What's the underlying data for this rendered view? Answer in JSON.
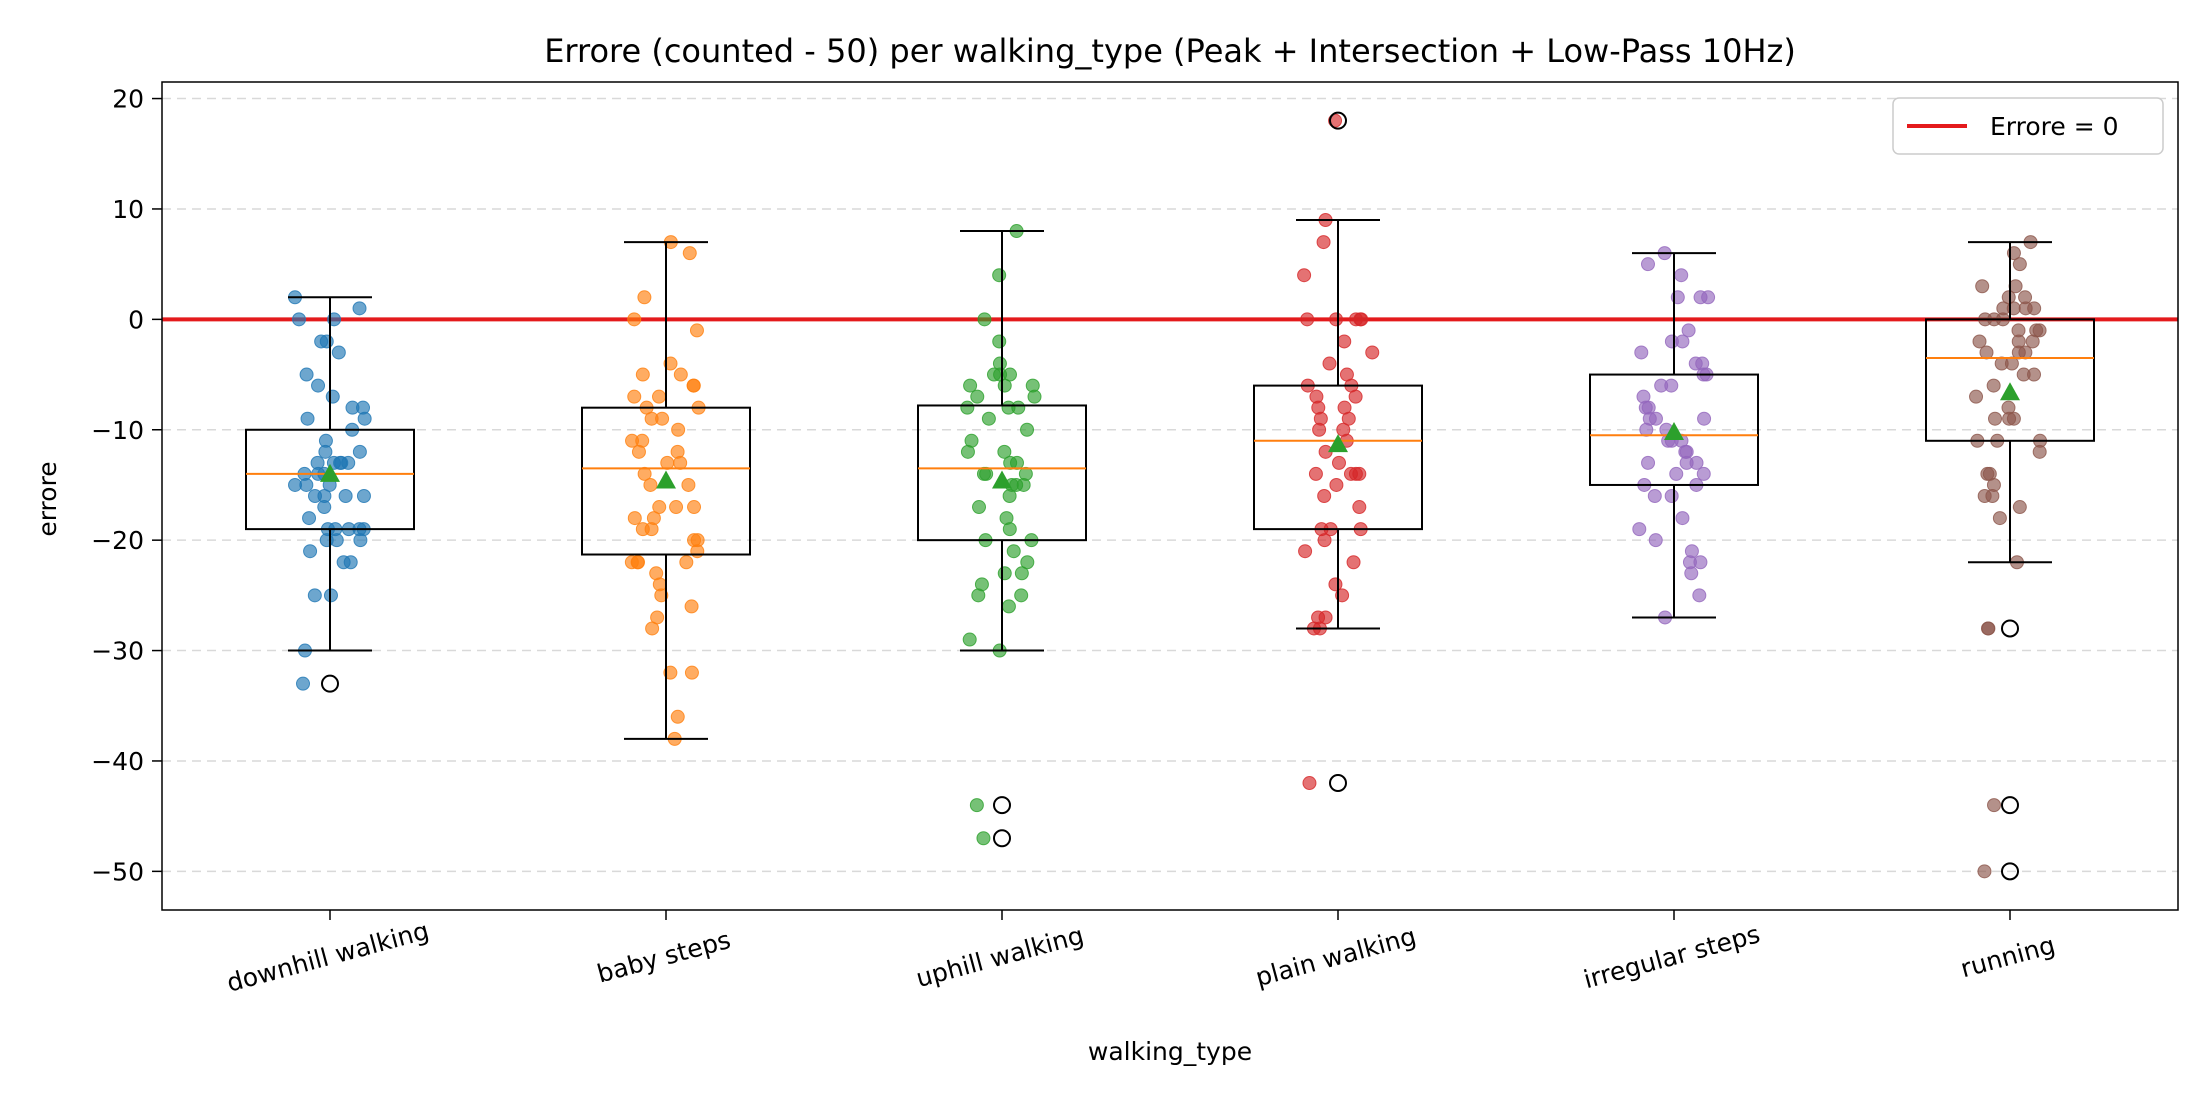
{
  "chart_data": {
    "type": "box",
    "title": "Errore (counted - 50) per walking_type (Peak + Intersection + Low-Pass 10Hz)",
    "xlabel": "walking_type",
    "ylabel": "errore",
    "ylim": [
      -53.5,
      21.5
    ],
    "yticks": [
      20,
      10,
      0,
      -10,
      -20,
      -30,
      -40,
      -50
    ],
    "ytick_labels": [
      "20",
      "10",
      "0",
      "−10",
      "−20",
      "−30",
      "−40",
      "−50"
    ],
    "grid": "horizontal dashed",
    "reference_line": {
      "value": 0,
      "color": "#e41a1c",
      "label": "Errore = 0"
    },
    "legend": {
      "position": "top-right",
      "label": "Errore = 0"
    },
    "categories": [
      "downhill walking",
      "baby steps",
      "uphill walking",
      "plain walking",
      "irregular steps",
      "running"
    ],
    "colors": [
      "#1f77b4",
      "#ff7f0e",
      "#2ca02c",
      "#d62728",
      "#9467bd",
      "#8c564b"
    ],
    "boxes": [
      {
        "name": "downhill walking",
        "whisker_low": -30,
        "q1": -19,
        "median": -14,
        "q3": -10,
        "whisker_high": 2,
        "mean": -14,
        "outliers": [
          -33
        ]
      },
      {
        "name": "baby steps",
        "whisker_low": -38,
        "q1": -21.3,
        "median": -13.5,
        "q3": -8,
        "whisker_high": 7,
        "mean": -14.6,
        "outliers": []
      },
      {
        "name": "uphill walking",
        "whisker_low": -30,
        "q1": -20,
        "median": -13.5,
        "q3": -7.8,
        "whisker_high": 8,
        "mean": -14.6,
        "outliers": [
          -44,
          -47
        ]
      },
      {
        "name": "plain walking",
        "whisker_low": -28,
        "q1": -19,
        "median": -11,
        "q3": -6,
        "whisker_high": 9,
        "mean": -11.3,
        "outliers": [
          -42,
          18
        ]
      },
      {
        "name": "irregular steps",
        "whisker_low": -27,
        "q1": -15,
        "median": -10.5,
        "q3": -5,
        "whisker_high": 6,
        "mean": -10.2,
        "outliers": []
      },
      {
        "name": "running",
        "whisker_low": -22,
        "q1": -11,
        "median": -3.5,
        "q3": 0,
        "whisker_high": 7,
        "mean": -6.6,
        "outliers": [
          -28,
          -44,
          -50
        ]
      }
    ],
    "points": [
      [
        2,
        1,
        0,
        0,
        -2,
        -2,
        -3,
        -5,
        -6,
        -7,
        -8,
        -8,
        -9,
        -9,
        -10,
        -11,
        -12,
        -12,
        -13,
        -13,
        -13,
        -13,
        -13,
        -14,
        -14,
        -14,
        -15,
        -15,
        -15,
        -16,
        -16,
        -16,
        -16,
        -17,
        -18,
        -19,
        -19,
        -19,
        -19,
        -19,
        -20,
        -20,
        -20,
        -21,
        -22,
        -22,
        -25,
        -25,
        -30,
        -33
      ],
      [
        7,
        6,
        2,
        0,
        -1,
        -4,
        -5,
        -5,
        -6,
        -6,
        -7,
        -7,
        -8,
        -8,
        -9,
        -9,
        -10,
        -11,
        -11,
        -12,
        -12,
        -13,
        -13,
        -14,
        -15,
        -15,
        -17,
        -17,
        -17,
        -18,
        -18,
        -19,
        -19,
        -20,
        -20,
        -21,
        -22,
        -22,
        -22,
        -22,
        -23,
        -24,
        -25,
        -26,
        -27,
        -28,
        -32,
        -32,
        -36,
        -38
      ],
      [
        8,
        4,
        0,
        -2,
        -4,
        -5,
        -5,
        -5,
        -6,
        -6,
        -6,
        -7,
        -7,
        -8,
        -8,
        -8,
        -9,
        -10,
        -11,
        -12,
        -12,
        -13,
        -13,
        -14,
        -14,
        -14,
        -15,
        -15,
        -15,
        -16,
        -17,
        -18,
        -19,
        -20,
        -20,
        -21,
        -22,
        -23,
        -23,
        -24,
        -25,
        -25,
        -26,
        -29,
        -30,
        -44,
        -47
      ],
      [
        18,
        9,
        7,
        4,
        0,
        0,
        0,
        0,
        0,
        -2,
        -3,
        -4,
        -5,
        -6,
        -6,
        -7,
        -7,
        -8,
        -8,
        -9,
        -9,
        -10,
        -10,
        -11,
        -12,
        -13,
        -14,
        -14,
        -14,
        -14,
        -15,
        -16,
        -17,
        -19,
        -19,
        -19,
        -20,
        -21,
        -22,
        -24,
        -25,
        -27,
        -27,
        -28,
        -28,
        -42
      ],
      [
        6,
        5,
        4,
        2,
        2,
        2,
        -1,
        -2,
        -2,
        -3,
        -4,
        -4,
        -5,
        -5,
        -6,
        -6,
        -7,
        -8,
        -8,
        -9,
        -9,
        -9,
        -10,
        -10,
        -11,
        -11,
        -11,
        -12,
        -12,
        -13,
        -13,
        -13,
        -14,
        -14,
        -15,
        -15,
        -16,
        -16,
        -18,
        -19,
        -20,
        -21,
        -22,
        -22,
        -23,
        -25,
        -27
      ],
      [
        7,
        6,
        5,
        3,
        3,
        2,
        2,
        1,
        1,
        1,
        1,
        0,
        0,
        0,
        -1,
        -1,
        -1,
        -2,
        -2,
        -2,
        -3,
        -3,
        -3,
        -4,
        -4,
        -5,
        -5,
        -6,
        -7,
        -8,
        -9,
        -9,
        -9,
        -11,
        -11,
        -11,
        -12,
        -14,
        -14,
        -15,
        -16,
        -16,
        -17,
        -18,
        -22,
        -28,
        -28,
        -44,
        -50
      ]
    ]
  }
}
